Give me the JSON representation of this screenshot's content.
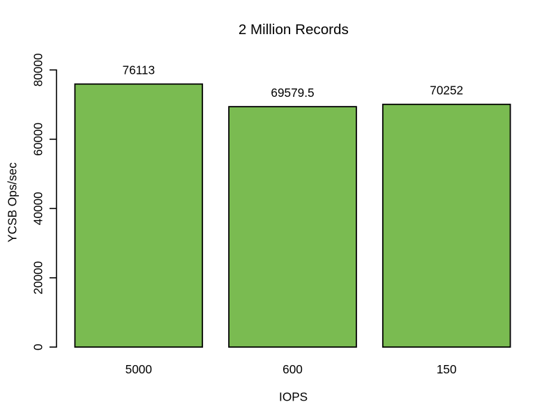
{
  "window": {
    "background": "#ffffff"
  },
  "chart_data": {
    "type": "bar",
    "title": "2 Million Records",
    "xlabel": "IOPS",
    "ylabel": "YCSB Ops/sec",
    "categories": [
      "5000",
      "600",
      "150"
    ],
    "values": [
      76113,
      69579.5,
      70252
    ],
    "value_labels": [
      "76113",
      "69579.5",
      "70252"
    ],
    "ylim": [
      0,
      80000
    ],
    "yticks": [
      0,
      20000,
      40000,
      60000,
      80000
    ],
    "ytick_labels": [
      "0",
      "20000",
      "40000",
      "60000",
      "80000"
    ],
    "grid": false,
    "legend": null,
    "bar_fill_color": "#7ABB51",
    "bar_border_color": "#000000",
    "axis_color": "#000000",
    "text_color": "#000000",
    "background_color": "#ffffff",
    "ytick_label_rotation_deg": -90,
    "ylabel_rotation_deg": -90
  }
}
